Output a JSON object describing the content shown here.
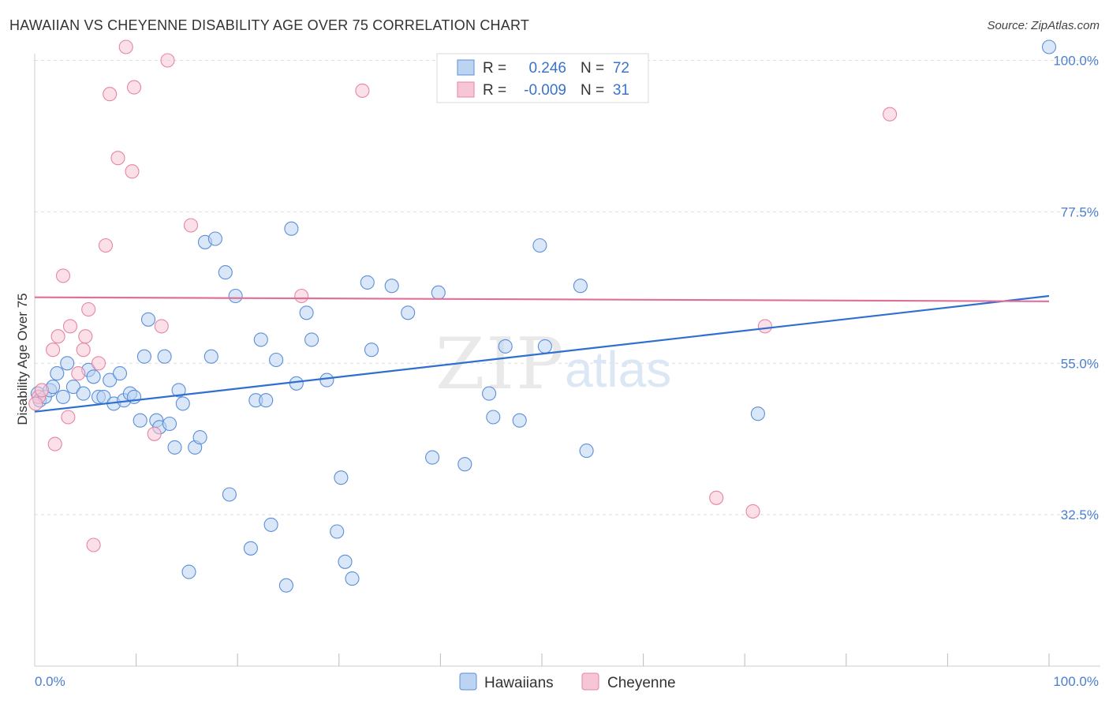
{
  "header": {
    "title": "HAWAIIAN VS CHEYENNE DISABILITY AGE OVER 75 CORRELATION CHART",
    "source": "Source: ZipAtlas.com"
  },
  "watermark": {
    "zip": "ZIP",
    "atlas": "atlas"
  },
  "legend": {
    "rows": [
      {
        "r_label": "R =",
        "r_value": "0.246",
        "n_label": "N =",
        "n_value": "72",
        "color": "#5b8fd8",
        "fill": "#bcd3f2"
      },
      {
        "r_label": "R =",
        "r_value": "-0.009",
        "n_label": "N =",
        "n_value": "31",
        "color": "#e585a6",
        "fill": "#f7c6d6"
      }
    ]
  },
  "bottom_legend": [
    {
      "label": "Hawaiians",
      "fill": "#bcd3f2",
      "stroke": "#5b8fd8"
    },
    {
      "label": "Cheyenne",
      "fill": "#f7c6d6",
      "stroke": "#e585a6"
    }
  ],
  "chart_data": {
    "type": "scatter",
    "title": "HAWAIIAN VS CHEYENNE DISABILITY AGE OVER 75 CORRELATION CHART",
    "xlabel": "",
    "ylabel": "Disability Age Over 75",
    "xlim": [
      0,
      100
    ],
    "ylim": [
      10,
      101
    ],
    "x_tick_labels": [
      "0.0%",
      "100.0%"
    ],
    "y_ticks": [
      32.5,
      55.0,
      77.5,
      100.0
    ],
    "y_tick_labels": [
      "32.5%",
      "55.0%",
      "77.5%",
      "100.0%"
    ],
    "grid": true,
    "legend_position": "top-center",
    "series": [
      {
        "name": "Hawaiians",
        "color": "#5b8fd8",
        "fill": "#bcd3f2",
        "trend": {
          "x": [
            0,
            100
          ],
          "y": [
            47.8,
            65.0
          ]
        },
        "points": [
          [
            0.3,
            50.5
          ],
          [
            0.5,
            49.5
          ],
          [
            1.0,
            50.0
          ],
          [
            1.5,
            51.0
          ],
          [
            1.8,
            51.5
          ],
          [
            2.2,
            53.5
          ],
          [
            2.8,
            50.0
          ],
          [
            3.2,
            55.0
          ],
          [
            3.8,
            51.5
          ],
          [
            4.8,
            50.5
          ],
          [
            5.3,
            54.0
          ],
          [
            5.8,
            53.0
          ],
          [
            6.3,
            50.0
          ],
          [
            6.8,
            50.0
          ],
          [
            7.4,
            52.5
          ],
          [
            7.8,
            49.0
          ],
          [
            8.4,
            53.5
          ],
          [
            8.8,
            49.5
          ],
          [
            9.4,
            50.5
          ],
          [
            9.8,
            50.0
          ],
          [
            10.4,
            46.5
          ],
          [
            10.8,
            56.0
          ],
          [
            11.2,
            61.5
          ],
          [
            12.0,
            46.5
          ],
          [
            12.3,
            45.5
          ],
          [
            12.8,
            56.0
          ],
          [
            13.3,
            46.0
          ],
          [
            13.8,
            42.5
          ],
          [
            14.2,
            51.0
          ],
          [
            14.6,
            49.0
          ],
          [
            15.2,
            24.0
          ],
          [
            15.8,
            42.5
          ],
          [
            16.3,
            44.0
          ],
          [
            16.8,
            73.0
          ],
          [
            17.4,
            56.0
          ],
          [
            17.8,
            73.5
          ],
          [
            18.8,
            68.5
          ],
          [
            19.2,
            35.5
          ],
          [
            19.8,
            65.0
          ],
          [
            21.3,
            27.5
          ],
          [
            21.8,
            49.5
          ],
          [
            22.3,
            58.5
          ],
          [
            22.8,
            49.5
          ],
          [
            23.3,
            31.0
          ],
          [
            23.8,
            55.5
          ],
          [
            24.8,
            22.0
          ],
          [
            25.3,
            75.0
          ],
          [
            25.8,
            52.0
          ],
          [
            26.8,
            62.5
          ],
          [
            27.3,
            58.5
          ],
          [
            28.8,
            52.5
          ],
          [
            29.8,
            30.0
          ],
          [
            30.2,
            38.0
          ],
          [
            30.6,
            25.5
          ],
          [
            31.3,
            23.0
          ],
          [
            32.8,
            67.0
          ],
          [
            33.2,
            57.0
          ],
          [
            35.2,
            66.5
          ],
          [
            36.8,
            62.5
          ],
          [
            39.2,
            41.0
          ],
          [
            39.8,
            65.5
          ],
          [
            42.4,
            40.0
          ],
          [
            44.8,
            50.5
          ],
          [
            45.2,
            47.0
          ],
          [
            46.4,
            57.5
          ],
          [
            47.8,
            46.5
          ],
          [
            49.8,
            72.5
          ],
          [
            50.3,
            57.5
          ],
          [
            53.8,
            66.5
          ],
          [
            54.4,
            42.0
          ],
          [
            71.3,
            47.5
          ],
          [
            100.0,
            102.0
          ]
        ]
      },
      {
        "name": "Cheyenne",
        "color": "#e585a6",
        "fill": "#f7c6d6",
        "trend": {
          "x": [
            0,
            100
          ],
          "y": [
            64.8,
            64.2
          ]
        },
        "points": [
          [
            0.4,
            50.0
          ],
          [
            0.7,
            51.0
          ],
          [
            1.8,
            57.0
          ],
          [
            2.0,
            43.0
          ],
          [
            2.3,
            59.0
          ],
          [
            2.8,
            68.0
          ],
          [
            3.3,
            47.0
          ],
          [
            3.5,
            60.5
          ],
          [
            4.3,
            53.5
          ],
          [
            4.8,
            57.0
          ],
          [
            5.0,
            59.0
          ],
          [
            5.3,
            63.0
          ],
          [
            5.8,
            28.0
          ],
          [
            6.3,
            55.0
          ],
          [
            7.0,
            72.5
          ],
          [
            7.4,
            95.0
          ],
          [
            8.2,
            85.5
          ],
          [
            9.0,
            102.0
          ],
          [
            9.6,
            83.5
          ],
          [
            9.8,
            96.0
          ],
          [
            11.8,
            44.5
          ],
          [
            12.5,
            60.5
          ],
          [
            13.1,
            100.0
          ],
          [
            15.4,
            75.5
          ],
          [
            26.3,
            65.0
          ],
          [
            32.3,
            95.5
          ],
          [
            67.2,
            35.0
          ],
          [
            70.8,
            33.0
          ],
          [
            72.0,
            60.5
          ],
          [
            84.3,
            92.0
          ],
          [
            0.1,
            49.0
          ]
        ]
      }
    ]
  }
}
